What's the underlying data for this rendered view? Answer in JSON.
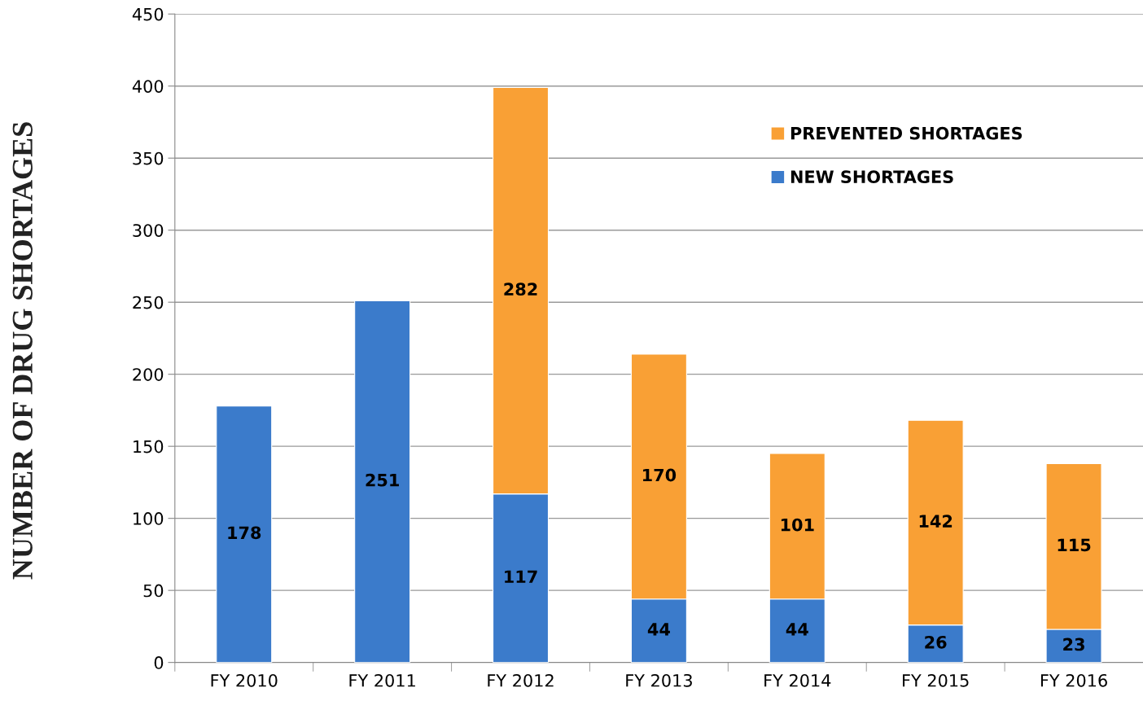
{
  "chart_data": {
    "type": "bar",
    "stacked": true,
    "ylabel": "NUMBER OF DRUG SHORTAGES",
    "categories": [
      "FY 2010",
      "FY 2011",
      "FY 2012",
      "FY 2013",
      "FY 2014",
      "FY 2015",
      "FY 2016"
    ],
    "series": [
      {
        "name": "NEW SHORTAGES",
        "color": "#3b7bcb",
        "values": [
          178,
          251,
          117,
          44,
          44,
          26,
          23
        ]
      },
      {
        "name": "PREVENTED SHORTAGES",
        "color": "#f9a035",
        "values": [
          null,
          null,
          282,
          170,
          101,
          142,
          115
        ]
      }
    ],
    "ylim": [
      0,
      450
    ],
    "yticks": [
      0,
      50,
      100,
      150,
      200,
      250,
      300,
      350,
      400,
      450
    ],
    "grid": "y",
    "legend": "top right",
    "data_labels": true
  }
}
